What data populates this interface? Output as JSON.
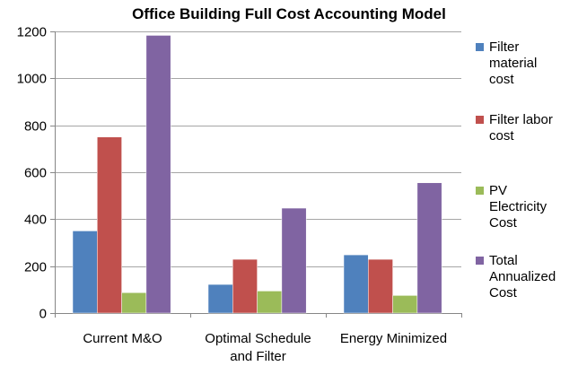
{
  "chart_data": {
    "type": "bar",
    "title": "Office Building Full Cost Accounting Model",
    "categories": [
      "Current M&O",
      "Optimal Schedule and Filter",
      "Energy Minimized"
    ],
    "category_lines": [
      [
        "Current M&O"
      ],
      [
        "Optimal Schedule",
        "and Filter"
      ],
      [
        "Energy Minimized"
      ]
    ],
    "series": [
      {
        "name": "Filter material cost",
        "color": "#4F81BD",
        "values": [
          350,
          122,
          248
        ]
      },
      {
        "name": "Filter labor cost",
        "color": "#C0504D",
        "values": [
          750,
          229,
          229
        ]
      },
      {
        "name": "PV Electricity Cost",
        "color": "#9BBB59",
        "values": [
          87,
          94,
          75
        ]
      },
      {
        "name": "Total Annualized Cost",
        "color": "#8064A2",
        "values": [
          1183,
          447,
          555
        ]
      }
    ],
    "legend_lines": [
      [
        "Filter",
        "material",
        "cost"
      ],
      [
        "Filter labor",
        "cost"
      ],
      [
        "PV",
        "Electricity",
        "Cost"
      ],
      [
        "Total",
        "Annualized",
        "Cost"
      ]
    ],
    "yticks": [
      0,
      200,
      400,
      600,
      800,
      1000,
      1200
    ],
    "ylim": [
      0,
      1200
    ],
    "xlabel": "",
    "ylabel": "",
    "grid": true,
    "legend_position": "right"
  }
}
